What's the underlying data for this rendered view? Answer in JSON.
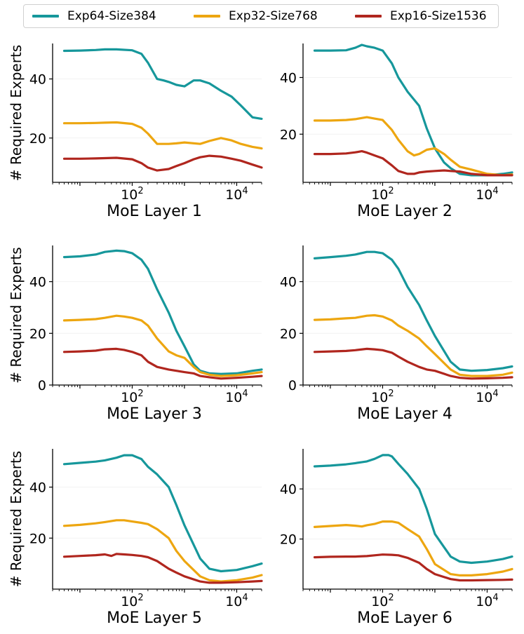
{
  "legend": {
    "entries": [
      {
        "label": "Exp64-Size384",
        "color": "#16979b"
      },
      {
        "label": "Exp32-Size768",
        "color": "#eda610"
      },
      {
        "label": "Exp16-Size1536",
        "color": "#b0261e"
      }
    ]
  },
  "chart_data": [
    {
      "type": "line",
      "title": "",
      "xlabel": "MoE Layer 1",
      "ylabel": "# Required Experts",
      "xscale": "log",
      "xlim": [
        3,
        30000
      ],
      "ylim": [
        5,
        52
      ],
      "xticks": [
        {
          "value": 100,
          "label": "10^2"
        },
        {
          "value": 10000,
          "label": "10^4"
        }
      ],
      "yticks": [
        {
          "value": 20,
          "label": "20"
        },
        {
          "value": 40,
          "label": "40"
        }
      ],
      "series": [
        {
          "name": "Exp64-Size384",
          "x": [
            5,
            10,
            20,
            30,
            50,
            100,
            150,
            200,
            300,
            400,
            500,
            700,
            1000,
            1500,
            2000,
            3000,
            5000,
            8000,
            12000,
            20000,
            30000
          ],
          "y": [
            49.5,
            49.6,
            49.8,
            50,
            50,
            49.7,
            48.5,
            45.5,
            40,
            39.5,
            39,
            38,
            37.5,
            39.5,
            39.5,
            38.5,
            36,
            34,
            31,
            27,
            26.5
          ]
        },
        {
          "name": "Exp32-Size768",
          "x": [
            5,
            10,
            20,
            30,
            50,
            100,
            150,
            200,
            300,
            500,
            700,
            1000,
            2000,
            3000,
            5000,
            8000,
            12000,
            20000,
            30000
          ],
          "y": [
            25,
            25,
            25.1,
            25.2,
            25.3,
            24.8,
            23.5,
            21.5,
            18,
            18,
            18.2,
            18.5,
            18,
            19,
            20,
            19.2,
            18,
            17,
            16.5
          ]
        },
        {
          "name": "Exp16-Size1536",
          "x": [
            5,
            10,
            20,
            30,
            50,
            100,
            150,
            200,
            300,
            500,
            700,
            1000,
            1500,
            2000,
            3000,
            5000,
            8000,
            12000,
            20000,
            30000
          ],
          "y": [
            13,
            13,
            13.1,
            13.2,
            13.3,
            12.8,
            11.5,
            10,
            9,
            9.5,
            10.5,
            11.5,
            12.8,
            13.5,
            14,
            13.7,
            13,
            12.3,
            11,
            10
          ]
        }
      ]
    },
    {
      "type": "line",
      "title": "",
      "xlabel": "MoE Layer 2",
      "ylabel": "",
      "xscale": "log",
      "xlim": [
        3,
        30000
      ],
      "ylim": [
        3,
        52
      ],
      "xticks": [
        {
          "value": 100,
          "label": "10^2"
        },
        {
          "value": 10000,
          "label": "10^4"
        }
      ],
      "yticks": [
        {
          "value": 20,
          "label": "20"
        },
        {
          "value": 40,
          "label": "40"
        }
      ],
      "series": [
        {
          "name": "Exp64-Size384",
          "x": [
            5,
            10,
            20,
            30,
            40,
            50,
            70,
            100,
            150,
            200,
            300,
            500,
            700,
            1000,
            1500,
            2000,
            3000,
            5000,
            10000,
            20000,
            30000
          ],
          "y": [
            49.5,
            49.5,
            49.6,
            50.5,
            51.5,
            51,
            50.5,
            49.5,
            45,
            40,
            35,
            30,
            22,
            15,
            10,
            8,
            6,
            5.5,
            5.5,
            6,
            6.5
          ]
        },
        {
          "name": "Exp32-Size768",
          "x": [
            5,
            10,
            20,
            30,
            50,
            70,
            100,
            150,
            200,
            300,
            400,
            500,
            700,
            1000,
            1500,
            2000,
            3000,
            5000,
            10000,
            20000,
            30000
          ],
          "y": [
            24.8,
            24.8,
            25,
            25.3,
            26,
            25.5,
            25,
            21.5,
            18,
            14,
            12.5,
            13,
            14.5,
            15,
            13,
            11,
            8.5,
            7.5,
            6,
            5.5,
            5.8
          ]
        },
        {
          "name": "Exp16-Size1536",
          "x": [
            5,
            10,
            20,
            30,
            40,
            50,
            70,
            100,
            150,
            200,
            300,
            400,
            500,
            700,
            1000,
            1500,
            2000,
            3000,
            5000,
            10000,
            20000,
            30000
          ],
          "y": [
            13,
            13,
            13.2,
            13.6,
            14,
            13.5,
            12.5,
            11.5,
            9,
            7,
            6,
            6,
            6.5,
            6.8,
            7,
            7.2,
            7,
            6.8,
            6,
            5.5,
            5.5,
            5.5
          ]
        }
      ]
    },
    {
      "type": "line",
      "title": "",
      "xlabel": "MoE Layer 3",
      "ylabel": "# Required Experts",
      "xscale": "log",
      "xlim": [
        3,
        30000
      ],
      "ylim": [
        0,
        54
      ],
      "xticks": [
        {
          "value": 100,
          "label": "10^2"
        },
        {
          "value": 10000,
          "label": "10^4"
        }
      ],
      "yticks": [
        {
          "value": 0,
          "label": "0"
        },
        {
          "value": 20,
          "label": "20"
        },
        {
          "value": 40,
          "label": "40"
        }
      ],
      "series": [
        {
          "name": "Exp64-Size384",
          "x": [
            5,
            10,
            20,
            30,
            50,
            70,
            100,
            150,
            200,
            300,
            500,
            700,
            1000,
            1500,
            2000,
            3000,
            5000,
            10000,
            20000,
            30000
          ],
          "y": [
            49.5,
            49.8,
            50.5,
            51.5,
            52,
            51.8,
            51,
            48.5,
            45,
            37,
            28,
            21,
            15,
            8,
            5.5,
            4.5,
            4.3,
            4.5,
            5.5,
            6
          ]
        },
        {
          "name": "Exp32-Size768",
          "x": [
            5,
            10,
            20,
            30,
            50,
            70,
            100,
            150,
            200,
            300,
            500,
            700,
            1000,
            1500,
            2000,
            3000,
            5000,
            10000,
            20000,
            30000
          ],
          "y": [
            25,
            25.2,
            25.5,
            26,
            26.8,
            26.5,
            26,
            25,
            23,
            18,
            13,
            11.5,
            10.5,
            7,
            5,
            4,
            3.5,
            3.8,
            4.5,
            5
          ]
        },
        {
          "name": "Exp16-Size1536",
          "x": [
            5,
            10,
            20,
            30,
            50,
            70,
            100,
            150,
            200,
            300,
            500,
            700,
            1000,
            1500,
            2000,
            3000,
            5000,
            10000,
            20000,
            30000
          ],
          "y": [
            12.8,
            13,
            13.3,
            13.8,
            14,
            13.6,
            12.8,
            11.5,
            9,
            7,
            6,
            5.5,
            5,
            4.5,
            3.5,
            3,
            2.5,
            2.8,
            3.2,
            3.5
          ]
        }
      ]
    },
    {
      "type": "line",
      "title": "",
      "xlabel": "MoE Layer 4",
      "ylabel": "",
      "xscale": "log",
      "xlim": [
        3,
        30000
      ],
      "ylim": [
        0,
        54
      ],
      "xticks": [
        {
          "value": 100,
          "label": "10^2"
        },
        {
          "value": 10000,
          "label": "10^4"
        }
      ],
      "yticks": [
        {
          "value": 0,
          "label": "0"
        },
        {
          "value": 20,
          "label": "20"
        },
        {
          "value": 40,
          "label": "40"
        }
      ],
      "series": [
        {
          "name": "Exp64-Size384",
          "x": [
            5,
            10,
            20,
            30,
            50,
            70,
            100,
            150,
            200,
            300,
            500,
            700,
            1000,
            2000,
            3000,
            5000,
            10000,
            20000,
            30000
          ],
          "y": [
            49,
            49.5,
            50,
            50.5,
            51.5,
            51.5,
            51,
            48.5,
            45,
            38,
            31,
            25,
            19,
            9,
            6,
            5.5,
            5.8,
            6.5,
            7.2
          ]
        },
        {
          "name": "Exp32-Size768",
          "x": [
            5,
            10,
            20,
            30,
            50,
            70,
            100,
            150,
            200,
            300,
            500,
            700,
            1000,
            2000,
            3000,
            5000,
            10000,
            20000,
            30000
          ],
          "y": [
            25.2,
            25.4,
            25.8,
            26,
            26.8,
            27,
            26.5,
            25,
            23,
            21,
            18,
            15,
            12,
            6,
            4,
            3.5,
            3.5,
            4,
            4.8
          ]
        },
        {
          "name": "Exp16-Size1536",
          "x": [
            5,
            10,
            20,
            30,
            50,
            70,
            100,
            150,
            200,
            300,
            500,
            700,
            1000,
            2000,
            3000,
            5000,
            10000,
            20000,
            30000
          ],
          "y": [
            12.8,
            13,
            13.2,
            13.5,
            14,
            13.8,
            13.5,
            12.5,
            11,
            9,
            7,
            6,
            5.5,
            3.5,
            2.8,
            2.5,
            2.6,
            2.8,
            3
          ]
        }
      ]
    },
    {
      "type": "line",
      "title": "",
      "xlabel": "MoE Layer 5",
      "ylabel": "# Required Experts",
      "xscale": "log",
      "xlim": [
        3,
        30000
      ],
      "ylim": [
        0,
        55
      ],
      "xticks": [
        {
          "value": 100,
          "label": "10^2"
        },
        {
          "value": 10000,
          "label": "10^4"
        }
      ],
      "yticks": [
        {
          "value": 20,
          "label": "20"
        },
        {
          "value": 40,
          "label": "40"
        }
      ],
      "series": [
        {
          "name": "Exp64-Size384",
          "x": [
            5,
            10,
            20,
            30,
            50,
            70,
            100,
            150,
            200,
            300,
            500,
            700,
            1000,
            2000,
            3000,
            5000,
            10000,
            20000,
            30000
          ],
          "y": [
            49,
            49.5,
            50,
            50.5,
            51.5,
            52.5,
            52.5,
            51,
            48,
            45,
            40,
            33,
            25,
            12,
            8,
            7,
            7.5,
            9,
            10
          ]
        },
        {
          "name": "Exp32-Size768",
          "x": [
            5,
            10,
            20,
            30,
            50,
            70,
            100,
            150,
            200,
            300,
            500,
            700,
            1000,
            2000,
            3000,
            5000,
            10000,
            20000,
            30000
          ],
          "y": [
            24.8,
            25.2,
            25.8,
            26.3,
            27,
            27,
            26.5,
            26,
            25.5,
            23.5,
            20,
            15,
            11,
            5,
            3.5,
            3,
            3.5,
            4.5,
            5.5
          ]
        },
        {
          "name": "Exp16-Size1536",
          "x": [
            5,
            10,
            20,
            30,
            40,
            50,
            70,
            100,
            150,
            200,
            300,
            500,
            700,
            1000,
            2000,
            3000,
            5000,
            10000,
            20000,
            30000
          ],
          "y": [
            12.7,
            13,
            13.3,
            13.6,
            13,
            13.8,
            13.6,
            13.4,
            13,
            12.5,
            11,
            8,
            6.5,
            5,
            3,
            2.5,
            2.5,
            2.7,
            3,
            3.2
          ]
        }
      ]
    },
    {
      "type": "line",
      "title": "",
      "xlabel": "MoE Layer 6",
      "ylabel": "",
      "xscale": "log",
      "xlim": [
        3,
        30000
      ],
      "ylim": [
        0,
        56
      ],
      "xticks": [
        {
          "value": 100,
          "label": "10^2"
        },
        {
          "value": 10000,
          "label": "10^4"
        }
      ],
      "yticks": [
        {
          "value": 20,
          "label": "20"
        },
        {
          "value": 40,
          "label": "40"
        }
      ],
      "series": [
        {
          "name": "Exp64-Size384",
          "x": [
            5,
            10,
            20,
            30,
            50,
            70,
            100,
            130,
            150,
            200,
            300,
            500,
            700,
            1000,
            2000,
            3000,
            5000,
            10000,
            20000,
            30000
          ],
          "y": [
            49,
            49.3,
            49.8,
            50.3,
            51,
            52,
            53.5,
            53.5,
            53,
            50,
            46,
            40,
            32,
            22,
            13,
            11,
            10.5,
            11,
            12,
            13
          ]
        },
        {
          "name": "Exp32-Size768",
          "x": [
            5,
            10,
            20,
            30,
            40,
            50,
            70,
            100,
            150,
            200,
            300,
            500,
            700,
            1000,
            2000,
            3000,
            5000,
            10000,
            20000,
            30000
          ],
          "y": [
            24.8,
            25.2,
            25.6,
            25.3,
            25,
            25.5,
            26,
            27,
            27,
            26.5,
            24,
            21,
            16,
            10,
            6,
            5.5,
            5.5,
            6,
            7,
            8
          ]
        },
        {
          "name": "Exp16-Size1536",
          "x": [
            5,
            10,
            20,
            30,
            50,
            70,
            100,
            150,
            200,
            300,
            500,
            700,
            1000,
            2000,
            3000,
            5000,
            10000,
            20000,
            30000
          ],
          "y": [
            12.7,
            12.9,
            13,
            13,
            13.2,
            13.5,
            13.8,
            13.7,
            13.5,
            12.5,
            10.5,
            8,
            6,
            4,
            3.5,
            3.5,
            3.6,
            3.7,
            3.8
          ]
        }
      ]
    }
  ]
}
